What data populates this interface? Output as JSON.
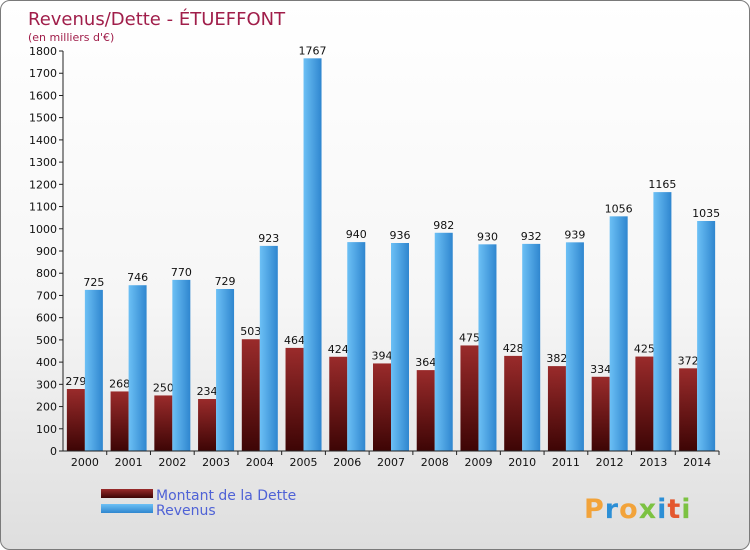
{
  "chart_data": {
    "type": "bar",
    "title": "Revenus/Dette - ÉTUEFFONT",
    "subtitle": "(en milliers d'€)",
    "categories": [
      "2000",
      "2001",
      "2002",
      "2003",
      "2004",
      "2005",
      "2006",
      "2007",
      "2008",
      "2009",
      "2010",
      "2011",
      "2012",
      "2013",
      "2014"
    ],
    "series": [
      {
        "name": "Montant de la Dette",
        "color": "#6e0f0f",
        "values": [
          279,
          268,
          250,
          234,
          503,
          464,
          424,
          394,
          364,
          475,
          428,
          382,
          334,
          425,
          372
        ]
      },
      {
        "name": "Revenus",
        "color": "#4aa3e6",
        "values": [
          725,
          746,
          770,
          729,
          923,
          1767,
          940,
          936,
          982,
          930,
          932,
          939,
          1056,
          1165,
          1035
        ]
      }
    ],
    "ylim": [
      0,
      1800
    ],
    "ytick_step": 100,
    "grid": false,
    "legend_position": "bottom-left"
  },
  "logo": {
    "text": "Proxiti"
  }
}
